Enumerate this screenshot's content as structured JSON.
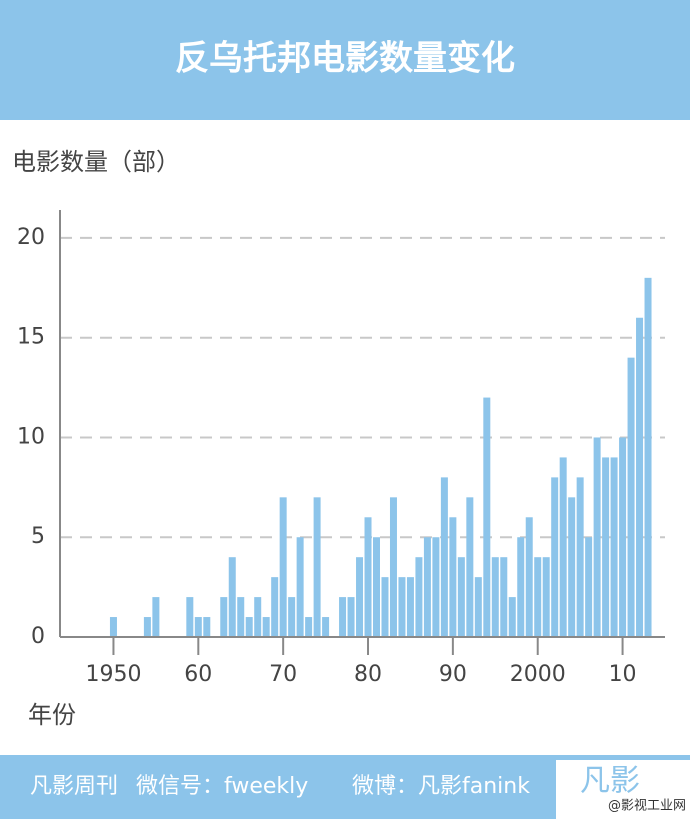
{
  "chart_data": {
    "type": "bar",
    "title": "反乌托邦电影数量变化",
    "y_label": "电影数量（部）",
    "x_label": "年份",
    "color": "#8cc4ea",
    "x": [
      1950,
      1954,
      1955,
      1959,
      1960,
      1961,
      1963,
      1964,
      1965,
      1966,
      1967,
      1968,
      1969,
      1970,
      1971,
      1972,
      1973,
      1974,
      1975,
      1977,
      1978,
      1979,
      1980,
      1981,
      1982,
      1983,
      1984,
      1985,
      1986,
      1987,
      1988,
      1989,
      1990,
      1991,
      1992,
      1993,
      1994,
      1995,
      1996,
      1997,
      1998,
      1999,
      2000,
      2001,
      2002,
      2003,
      2004,
      2005,
      2006,
      2007,
      2008,
      2009,
      2010,
      2011,
      2012,
      2013
    ],
    "values": [
      1,
      1,
      2,
      2,
      1,
      1,
      2,
      4,
      2,
      1,
      2,
      1,
      3,
      7,
      2,
      5,
      1,
      7,
      1,
      2,
      2,
      4,
      6,
      5,
      3,
      7,
      3,
      3,
      4,
      5,
      5,
      8,
      6,
      4,
      7,
      3,
      12,
      4,
      4,
      2,
      5,
      6,
      4,
      4,
      8,
      9,
      7,
      8,
      5,
      10,
      9,
      9,
      10,
      14,
      16,
      18
    ],
    "xlim": [
      1943.7,
      2015
    ],
    "ylim": [
      0,
      21.4
    ],
    "xticks": [
      {
        "value": 1950,
        "label": "1950"
      },
      {
        "value": 1960,
        "label": "60"
      },
      {
        "value": 1970,
        "label": "70"
      },
      {
        "value": 1980,
        "label": "80"
      },
      {
        "value": 1990,
        "label": "90"
      },
      {
        "value": 2000,
        "label": "2000"
      },
      {
        "value": 2010,
        "label": "10"
      }
    ],
    "yticks": [
      0,
      5,
      10,
      15,
      20
    ],
    "grid": true
  },
  "footer": {
    "items": [
      "凡影周刊",
      "微信号：fweekly",
      "微博：凡影fanink"
    ],
    "logo": "凡影",
    "watermark": "@影视工业网"
  }
}
